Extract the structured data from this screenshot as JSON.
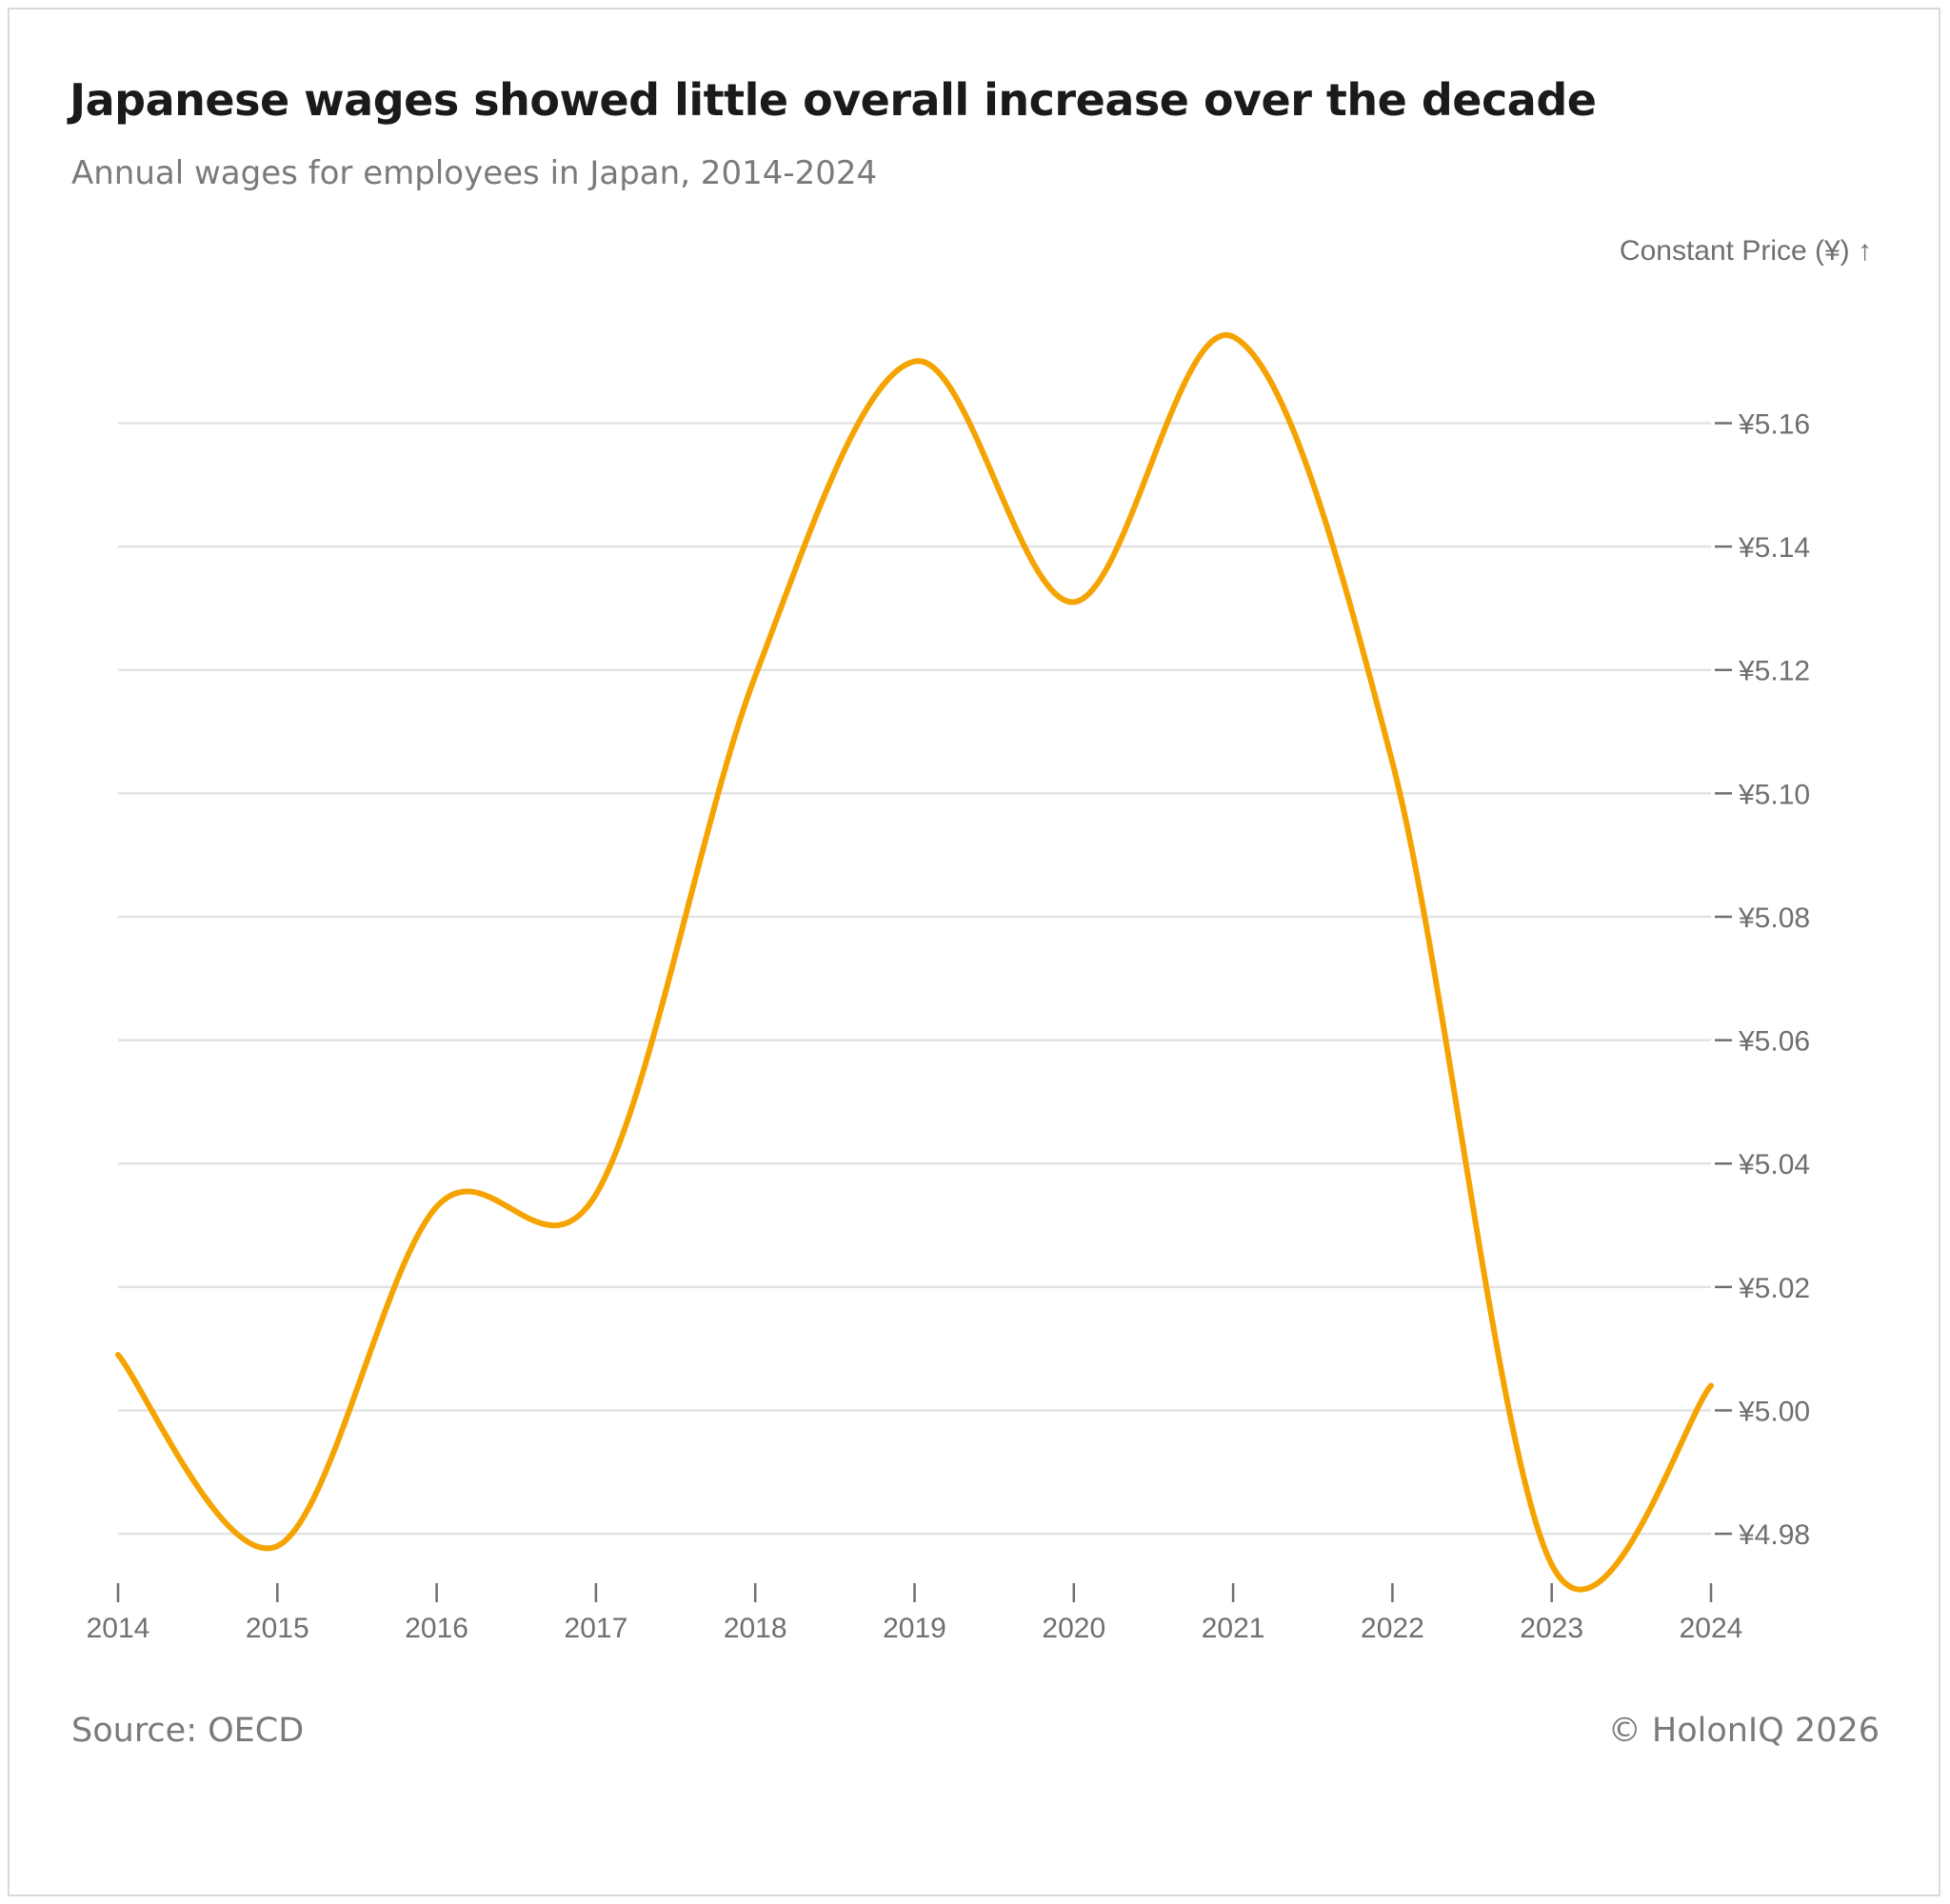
{
  "chart_data": {
    "type": "line",
    "title": "Japanese wages showed little overall increase over the decade",
    "subtitle": "Annual wages for employees in Japan, 2014-2024",
    "ylabel": "Constant Price (¥) ↑",
    "xlabel": "",
    "x": [
      2014,
      2015,
      2016,
      2017,
      2018,
      2019,
      2020,
      2021,
      2022,
      2023,
      2024
    ],
    "x_tick_labels": [
      "2014",
      "2015",
      "2016",
      "2017",
      "2018",
      "2019",
      "2020",
      "2021",
      "2022",
      "2023",
      "2024"
    ],
    "series": [
      {
        "name": "Annual wages",
        "color": "#f5a300",
        "values": [
          5.009,
          4.978,
          5.033,
          5.035,
          5.119,
          5.17,
          5.131,
          5.174,
          5.105,
          4.975,
          5.004
        ]
      }
    ],
    "ylim": [
      4.976,
      5.19
    ],
    "y_ticks": [
      4.98,
      5.0,
      5.02,
      5.04,
      5.06,
      5.08,
      5.1,
      5.12,
      5.14,
      5.16
    ],
    "y_tick_labels": [
      "¥4.98",
      "¥5.00",
      "¥5.02",
      "¥5.04",
      "¥5.06",
      "¥5.08",
      "¥5.10",
      "¥5.12",
      "¥5.14",
      "¥5.16"
    ],
    "grid": true,
    "axis_position": "right",
    "source": "Source: OECD",
    "credit": "© HolonIQ 2026"
  }
}
